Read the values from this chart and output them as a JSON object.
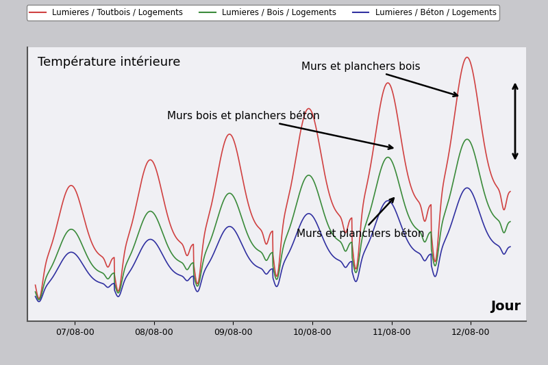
{
  "title": "Température intérieure",
  "xlabel": "Jour",
  "legend_labels": [
    "Lumieres / Toutbois / Logements",
    "Lumieres / Bois / Logements",
    "Lumieres / Béton / Logements"
  ],
  "line_colors": [
    "#d04040",
    "#3a8a3a",
    "#3030a0"
  ],
  "x_tick_labels": [
    "07/08-00",
    "08/08-00",
    "09/08-00",
    "10/08-00",
    "11/08-00",
    "12/08-00"
  ],
  "background_color": "#f0f0f0",
  "plot_bg_color": "#f0f0f4",
  "grid_color": "#d8d8e0",
  "outer_bg": "#c8c8cc"
}
